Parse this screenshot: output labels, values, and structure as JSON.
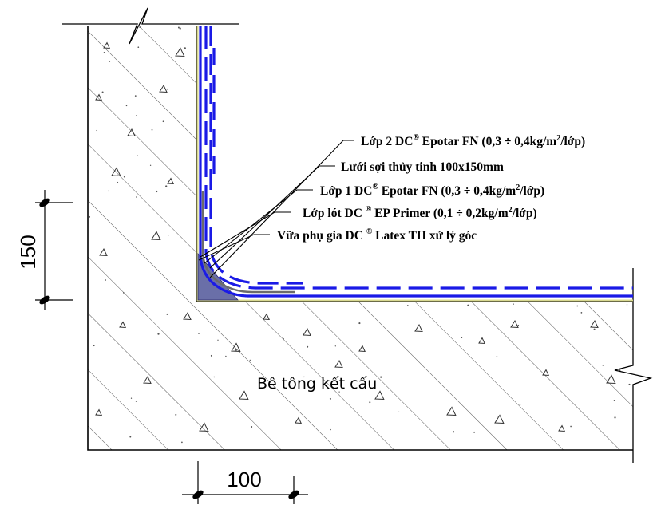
{
  "labels": {
    "layer2": {
      "prefix": "Lớp 2   DC",
      "reg": "®",
      "suffix": " Epotar FN (0,3 ÷ 0,4kg/m",
      "exp": "2",
      "tail": "/lớp)"
    },
    "mesh": {
      "text": "Lưới sợi thủy tinh 100x150mm"
    },
    "layer1": {
      "prefix": "Lớp 1   DC",
      "reg": "®",
      "suffix": " Epotar FN (0,3 ÷ 0,4kg/m",
      "exp": "2",
      "tail": "/lớp)"
    },
    "primer": {
      "prefix": "Lớp lót  DC ",
      "reg": "®",
      "suffix": " EP Primer (0,1 ÷ 0,2kg/m",
      "exp": "2",
      "tail": "/lớp)"
    },
    "mortar": {
      "prefix": "Vữa phụ gia  DC ",
      "reg": "®",
      "suffix": " Latex TH xử lý góc"
    }
  },
  "concrete_label": "Bê tông kết cấu",
  "dimensions": {
    "vertical": "150",
    "horizontal": "100"
  },
  "colors": {
    "membrane_blue": "#1a1ae6",
    "fillet_fill": "#6a6fa8",
    "primer_yellow": "#d8d890"
  }
}
